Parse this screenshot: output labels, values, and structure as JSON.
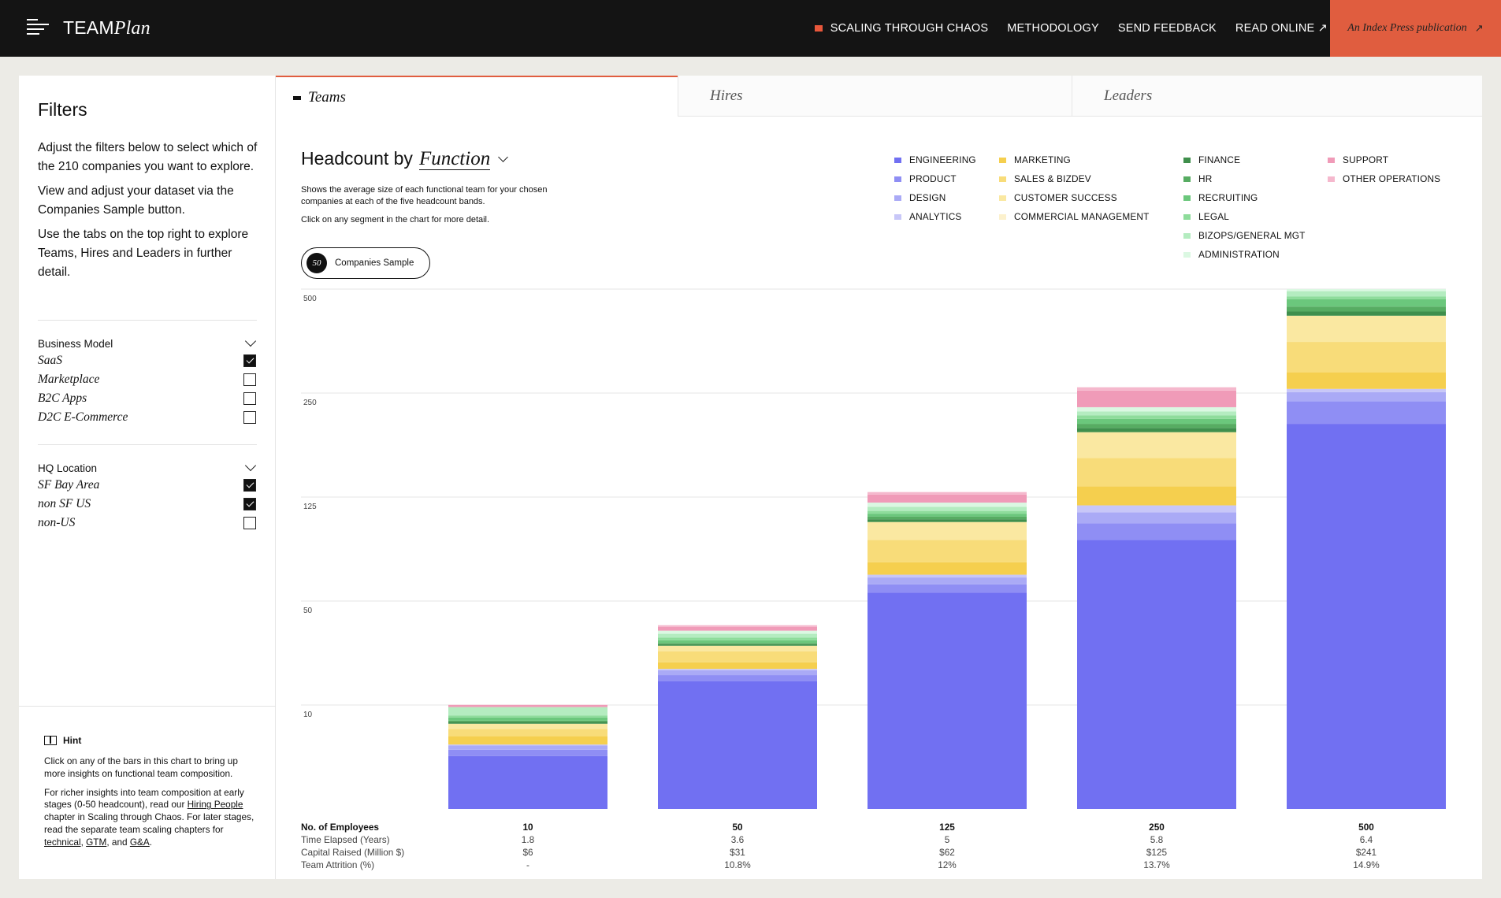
{
  "header": {
    "logo_main": "TEAM",
    "logo_italic": "Plan",
    "nav": [
      {
        "label": "SCALING THROUGH CHAOS",
        "marker": true
      },
      {
        "label": "METHODOLOGY"
      },
      {
        "label": "SEND FEEDBACK"
      },
      {
        "label": "READ ONLINE ↗"
      }
    ],
    "publication": "An Index Press publication",
    "publication_arrow": "↗"
  },
  "sidebar": {
    "title": "Filters",
    "intro": [
      "Adjust the filters below to select which of the 210 companies you want to explore.",
      "View and adjust your dataset via the Companies Sample button.",
      "Use the tabs on the top right to explore Teams, Hires and Leaders in further detail."
    ],
    "groups": [
      {
        "title": "Business Model",
        "options": [
          {
            "label": "SaaS",
            "checked": true
          },
          {
            "label": "Marketplace",
            "checked": false
          },
          {
            "label": "B2C Apps",
            "checked": false
          },
          {
            "label": "D2C E-Commerce",
            "checked": false
          }
        ]
      },
      {
        "title": "HQ Location",
        "options": [
          {
            "label": "SF Bay Area",
            "checked": true
          },
          {
            "label": "non SF US",
            "checked": true
          },
          {
            "label": "non-US",
            "checked": false
          }
        ]
      }
    ],
    "hint": {
      "title": "Hint",
      "p1": "Click on any of the bars in this chart to bring up more insights on functional team composition.",
      "p2_a": "For richer insights into team composition at early stages (0-50 headcount), read our ",
      "p2_link1": "Hiring People",
      "p2_b": " chapter in Scaling through Chaos. For later stages, read the separate team scaling chapters for ",
      "p2_link2": "technical",
      "p2_c": ", ",
      "p2_link3": "GTM",
      "p2_d": ", and ",
      "p2_link4": "G&A",
      "p2_e": "."
    }
  },
  "tabs": [
    {
      "label": "Teams",
      "active": true
    },
    {
      "label": "Hires",
      "active": false
    },
    {
      "label": "Leaders",
      "active": false
    }
  ],
  "main": {
    "title_prefix": "Headcount by",
    "title_dropdown": "Function",
    "desc1": "Shows the average size of each functional team for your chosen companies at each of the five headcount bands.",
    "desc2": "Click on any segment in the chart for more detail.",
    "sample_count": "50",
    "sample_label": "Companies Sample"
  },
  "legend_columns": [
    [
      {
        "label": "ENGINEERING",
        "color": "#7170f2"
      },
      {
        "label": "PRODUCT",
        "color": "#8f8ef4"
      },
      {
        "label": "DESIGN",
        "color": "#aaaaf6"
      },
      {
        "label": "ANALYTICS",
        "color": "#c8c7f8"
      }
    ],
    [
      {
        "label": "MARKETING",
        "color": "#f5cf4e"
      },
      {
        "label": "SALES & BIZDEV",
        "color": "#f8dc79"
      },
      {
        "label": "CUSTOMER SUCCESS",
        "color": "#fae8a1"
      },
      {
        "label": "COMMERCIAL MANAGEMENT",
        "color": "#fcf1cd"
      }
    ],
    [
      {
        "label": "FINANCE",
        "color": "#3f8f4c"
      },
      {
        "label": "HR",
        "color": "#57ac62"
      },
      {
        "label": "RECRUITING",
        "color": "#6bc77c"
      },
      {
        "label": "LEGAL",
        "color": "#8edc9b"
      },
      {
        "label": "BIZOPS/GENERAL MGT",
        "color": "#b4ecc0"
      },
      {
        "label": "ADMINISTRATION",
        "color": "#dbf8e2"
      }
    ],
    [
      {
        "label": "SUPPORT",
        "color": "#f09bb8"
      },
      {
        "label": "OTHER OPERATIONS",
        "color": "#f5b8cd"
      }
    ]
  ],
  "chart_data": {
    "type": "bar",
    "stacked": true,
    "y_scale": "banded (each gridline band is equal height)",
    "y_ticks": [
      "10",
      "50",
      "125",
      "250",
      "500"
    ],
    "categories": [
      "10",
      "50",
      "125",
      "250",
      "500"
    ],
    "series": [
      {
        "name": "ENGINEERING",
        "values": [
          5.1,
          19.2,
          56,
          94,
          213
        ]
      },
      {
        "name": "PRODUCT",
        "values": [
          0.6,
          2.3,
          6,
          12,
          27
        ]
      },
      {
        "name": "DESIGN",
        "values": [
          0.4,
          1.9,
          5,
          8,
          12
        ]
      },
      {
        "name": "ANALYTICS",
        "values": [
          0.1,
          0.5,
          2,
          5,
          8
        ]
      },
      {
        "name": "MARKETING",
        "values": [
          0.8,
          2.5,
          9,
          19,
          40
        ]
      },
      {
        "name": "SALES & BIZDEV",
        "values": [
          0.7,
          4.2,
          16,
          34,
          73
        ]
      },
      {
        "name": "CUSTOMER SUCCESS",
        "values": [
          0.5,
          2.2,
          13,
          31,
          63
        ]
      },
      {
        "name": "COMMERCIAL MANAGEMENT",
        "values": [
          0,
          0,
          0,
          0,
          0
        ]
      },
      {
        "name": "FINANCE",
        "values": [
          0.2,
          0.6,
          2,
          5,
          10
        ]
      },
      {
        "name": "HR",
        "values": [
          0.1,
          0.5,
          2,
          5,
          12
        ]
      },
      {
        "name": "RECRUITING",
        "values": [
          0.3,
          1,
          2,
          6,
          18
        ]
      },
      {
        "name": "LEGAL",
        "values": [
          0.2,
          1,
          2,
          4,
          6
        ]
      },
      {
        "name": "BIZOPS/GENERAL MGT",
        "values": [
          0.8,
          1.5,
          3,
          5,
          13
        ]
      },
      {
        "name": "ADMINISTRATION",
        "values": [
          0,
          1.2,
          3,
          5,
          5
        ]
      },
      {
        "name": "SUPPORT",
        "values": [
          0.2,
          1.5,
          7,
          23,
          33
        ]
      },
      {
        "name": "OTHER OPERATIONS",
        "values": [
          0.1,
          0.6,
          3,
          8,
          14
        ]
      }
    ]
  },
  "table": {
    "rows": [
      {
        "label": "No. of Employees",
        "values": [
          "10",
          "50",
          "125",
          "250",
          "500"
        ],
        "bold": true
      },
      {
        "label": "Time Elapsed (Years)",
        "values": [
          "1.8",
          "3.6",
          "5",
          "5.8",
          "6.4"
        ]
      },
      {
        "label": "Capital Raised (Million $)",
        "values": [
          "$6",
          "$31",
          "$62",
          "$125",
          "$241"
        ]
      },
      {
        "label": "Team Attrition (%)",
        "values": [
          "-",
          "10.8%",
          "12%",
          "13.7%",
          "14.9%"
        ]
      }
    ]
  }
}
